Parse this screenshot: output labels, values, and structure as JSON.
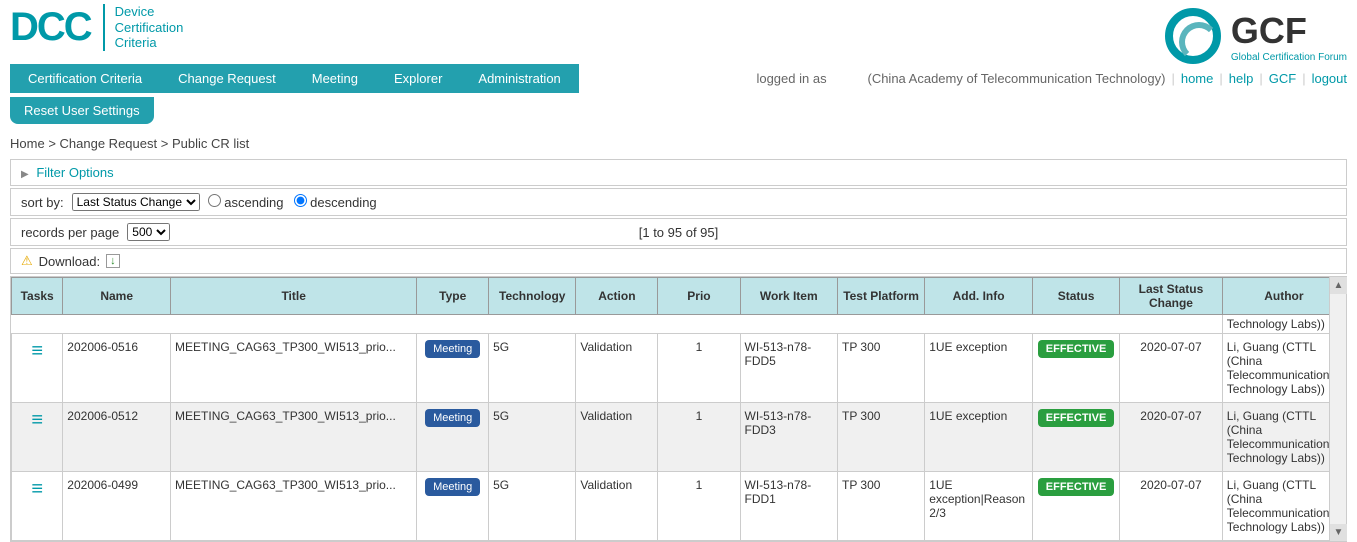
{
  "header": {
    "dcc_logo": "DCC",
    "dcc_sub1": "Device",
    "dcc_sub2": "Certification",
    "dcc_sub3": "Criteria",
    "gcf_logo": "GCF",
    "gcf_sub": "Global Certification Forum"
  },
  "nav": {
    "items": [
      "Certification Criteria",
      "Change Request",
      "Meeting",
      "Explorer",
      "Administration"
    ],
    "reset": "Reset User Settings"
  },
  "login": {
    "prefix": "logged in as",
    "org": "(China Academy of Telecommunication Technology)",
    "home": "home",
    "help": "help",
    "gcf": "GCF",
    "logout": "logout"
  },
  "breadcrumb": {
    "items": [
      "Home",
      "Change Request",
      "Public CR list"
    ]
  },
  "filter": {
    "label": "Filter Options"
  },
  "sort": {
    "label": "sort by:",
    "selected": "Last Status Change",
    "asc": "ascending",
    "desc": "descending",
    "desc_checked": true
  },
  "records": {
    "label": "records per page",
    "selected": "500",
    "range": "[1 to 95 of 95]"
  },
  "download": {
    "label": "Download:"
  },
  "table": {
    "columns": [
      "Tasks",
      "Name",
      "Title",
      "Type",
      "Technology",
      "Action",
      "Prio",
      "Work Item",
      "Test Platform",
      "Add. Info",
      "Status",
      "Last Status Change",
      "Author"
    ],
    "author_stub_top": "Technology Labs))",
    "rows": [
      {
        "name": "202006-0516",
        "title": "MEETING_CAG63_TP300_WI513_prio...",
        "type": "Meeting",
        "tech": "5G",
        "action": "Validation",
        "prio": "1",
        "work": "WI-513-n78-FDD5",
        "test": "TP 300",
        "add": "1UE exception",
        "status": "EFFECTIVE",
        "last": "2020-07-07",
        "author": "Li, Guang (CTTL (China Telecommunication Technology Labs))"
      },
      {
        "name": "202006-0512",
        "title": "MEETING_CAG63_TP300_WI513_prio...",
        "type": "Meeting",
        "tech": "5G",
        "action": "Validation",
        "prio": "1",
        "work": "WI-513-n78-FDD3",
        "test": "TP 300",
        "add": "1UE exception",
        "status": "EFFECTIVE",
        "last": "2020-07-07",
        "author": "Li, Guang (CTTL (China Telecommunication Technology Labs))"
      },
      {
        "name": "202006-0499",
        "title": "MEETING_CAG63_TP300_WI513_prio...",
        "type": "Meeting",
        "tech": "5G",
        "action": "Validation",
        "prio": "1",
        "work": "WI-513-n78-FDD1",
        "test": "TP 300",
        "add": "1UE exception|Reason 2/3",
        "status": "EFFECTIVE",
        "last": "2020-07-07",
        "author": "Li, Guang (CTTL (China Telecommunication Technology Labs))"
      }
    ]
  },
  "colors": {
    "teal": "#0099a8",
    "nav_bg": "#23a0ae",
    "th_bg": "#bfe4e8",
    "meeting_badge": "#2a5a9e",
    "effective_badge": "#2a9e3f"
  }
}
